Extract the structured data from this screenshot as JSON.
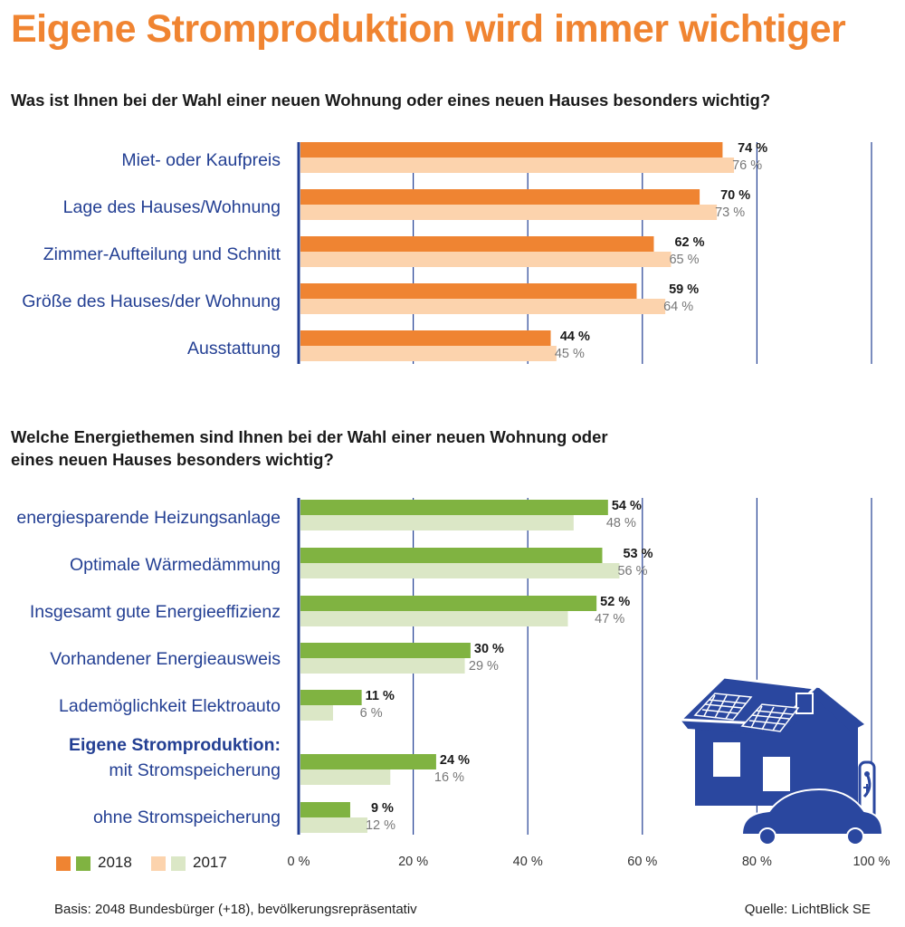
{
  "title": "Eigene Stromproduktion wird immer wichtiger",
  "colors": {
    "orange_2018": "#ef8432",
    "orange_2017": "#fcd3ad",
    "green_2018": "#80b341",
    "green_2017": "#dbe7c6",
    "axis": "#233f93",
    "house": "#2a479f"
  },
  "chart_data": [
    {
      "type": "bar",
      "orientation": "horizontal",
      "title": "Was ist Ihnen bei der Wahl einer neuen Wohnung oder eines neuen Hauses besonders wichtig?",
      "categories": [
        "Miet- oder Kaufpreis",
        "Lage des Hauses/Wohnung",
        "Zimmer-Aufteilung und Schnitt",
        "Größe des Hauses/der Wohnung",
        "Ausstattung"
      ],
      "series": [
        {
          "name": "2018",
          "values": [
            74,
            70,
            62,
            59,
            44
          ]
        },
        {
          "name": "2017",
          "values": [
            76,
            73,
            65,
            64,
            45
          ]
        }
      ],
      "value_labels_2018": [
        "74 %",
        "70 %",
        "62 %",
        "59 %",
        "44 %"
      ],
      "value_labels_2017": [
        "76 %",
        "73 %",
        "65 %",
        "64 %",
        "45 %"
      ],
      "xlim": [
        0,
        100
      ]
    },
    {
      "type": "bar",
      "orientation": "horizontal",
      "title": "Welche Energiethemen sind Ihnen bei der Wahl einer neuen Wohnung oder eines neuen Hauses besonders wichtig?",
      "categories": [
        "energiesparende Heizungsanlage",
        "Optimale Wärmedämmung",
        "Insgesamt gute Energieeffizienz",
        "Vorhandener Energieausweis",
        "Lademöglichkeit Elektroauto",
        "mit Stromspeicherung",
        "ohne Stromspeicherung"
      ],
      "group_label": "Eigene Stromproduktion:",
      "series": [
        {
          "name": "2018",
          "values": [
            54,
            53,
            52,
            30,
            11,
            24,
            9
          ]
        },
        {
          "name": "2017",
          "values": [
            48,
            56,
            47,
            29,
            6,
            16,
            12
          ]
        }
      ],
      "value_labels_2018": [
        "54 %",
        "53 %",
        "52 %",
        "30 %",
        "11 %",
        "24 %",
        "9 %"
      ],
      "value_labels_2017": [
        "48 %",
        "56 %",
        "47 %",
        "29 %",
        "6 %",
        "16 %",
        "12 %"
      ],
      "xlim": [
        0,
        100
      ],
      "xticks": [
        "0 %",
        "20 %",
        "40 %",
        "60 %",
        "80 %",
        "100 %"
      ]
    }
  ],
  "legend": {
    "label_2018": "2018",
    "label_2017": "2017"
  },
  "footer": {
    "basis": "Basis: 2048 Bundesbürger (+18), bevölkerungsrepräsentativ",
    "source": "Quelle: LichtBlick SE"
  }
}
